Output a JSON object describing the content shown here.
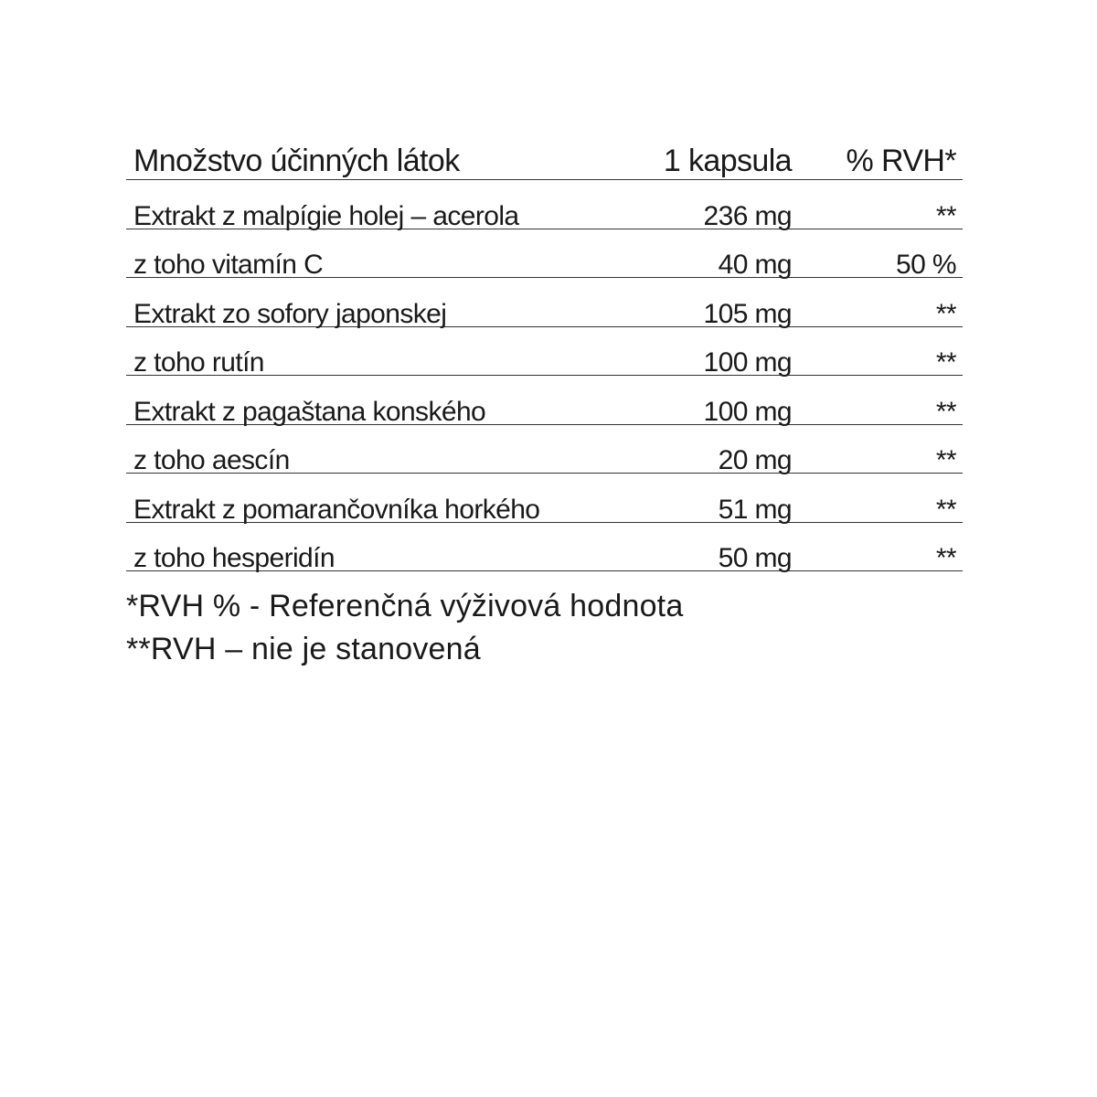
{
  "table": {
    "header": {
      "name": "Množstvo účinných látok",
      "amount": "1 kapsula",
      "rvh": "% RVH*"
    },
    "rows": [
      {
        "name": "Extrakt z malpígie holej – acerola",
        "amount": "236 mg",
        "rvh": "**"
      },
      {
        "name": "z toho vitamín C",
        "amount": "40 mg",
        "rvh": "50 %"
      },
      {
        "name": "Extrakt zo sofory japonskej",
        "amount": "105 mg",
        "rvh": "**"
      },
      {
        "name": "z toho rutín",
        "amount": "100 mg",
        "rvh": "**"
      },
      {
        "name": "Extrakt z pagaštana konského",
        "amount": "100 mg",
        "rvh": "**"
      },
      {
        "name": "z toho aescín",
        "amount": "20 mg",
        "rvh": "**"
      },
      {
        "name": "Extrakt z pomarančovníka horkého",
        "amount": "51 mg",
        "rvh": "**"
      },
      {
        "name": "z toho hesperidín",
        "amount": "50 mg",
        "rvh": "**"
      }
    ]
  },
  "footnotes": [
    "*RVH % - Referenčná výživová hodnota",
    "**RVH – nie je stanovená"
  ]
}
